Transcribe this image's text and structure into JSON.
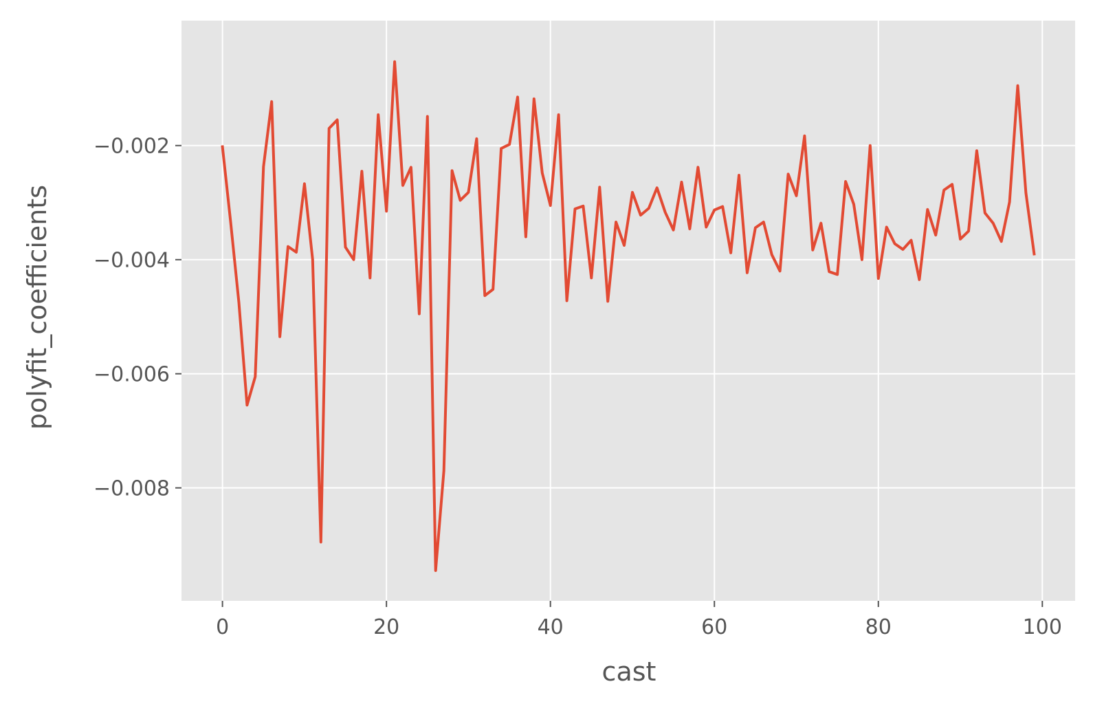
{
  "chart_data": {
    "type": "line",
    "title": "",
    "xlabel": "cast",
    "ylabel": "polyfit_coefficients",
    "xlim": [
      -5,
      104
    ],
    "ylim": [
      -0.00998,
      0.00019
    ],
    "grid": true,
    "x_ticks": [
      0,
      20,
      40,
      60,
      80,
      100
    ],
    "x_tick_labels": [
      "0",
      "20",
      "40",
      "60",
      "80",
      "100"
    ],
    "y_ticks": [
      -0.002,
      -0.004,
      -0.006,
      -0.008
    ],
    "y_tick_labels": [
      "−0.002",
      "−0.004",
      "−0.006",
      "−0.008"
    ],
    "series": [
      {
        "color": "#E24A33",
        "x": [
          0,
          1,
          2,
          3,
          4,
          5,
          6,
          7,
          8,
          9,
          10,
          11,
          12,
          13,
          14,
          15,
          16,
          17,
          18,
          19,
          20,
          21,
          22,
          23,
          24,
          25,
          26,
          27,
          28,
          29,
          30,
          31,
          32,
          33,
          34,
          35,
          36,
          37,
          38,
          39,
          40,
          41,
          42,
          43,
          44,
          45,
          46,
          47,
          48,
          49,
          50,
          51,
          52,
          53,
          54,
          55,
          56,
          57,
          58,
          59,
          60,
          61,
          62,
          63,
          64,
          65,
          66,
          67,
          68,
          69,
          70,
          71,
          72,
          73,
          74,
          75,
          76,
          77,
          78,
          79,
          80,
          81,
          82,
          83,
          84,
          85,
          86,
          87,
          88,
          89,
          90,
          91,
          92,
          93,
          94,
          95,
          96,
          97,
          98,
          99
        ],
        "y": [
          -0.00202,
          -0.00335,
          -0.00475,
          -0.00655,
          -0.00605,
          -0.00237,
          -0.00123,
          -0.00535,
          -0.00377,
          -0.00387,
          -0.00267,
          -0.004,
          -0.00895,
          -0.0017,
          -0.00155,
          -0.00378,
          -0.004,
          -0.00245,
          -0.00432,
          -0.00146,
          -0.00315,
          -0.00053,
          -0.0027,
          -0.00238,
          -0.00495,
          -0.00149,
          -0.00945,
          -0.0077,
          -0.00244,
          -0.00296,
          -0.00282,
          -0.00188,
          -0.00463,
          -0.00452,
          -0.00205,
          -0.00198,
          -0.00115,
          -0.0036,
          -0.00118,
          -0.00248,
          -0.00305,
          -0.00146,
          -0.00472,
          -0.00311,
          -0.00306,
          -0.00432,
          -0.00273,
          -0.00473,
          -0.00334,
          -0.00375,
          -0.00282,
          -0.00322,
          -0.0031,
          -0.00274,
          -0.00317,
          -0.00348,
          -0.00264,
          -0.00346,
          -0.00238,
          -0.00343,
          -0.00313,
          -0.00307,
          -0.00388,
          -0.00252,
          -0.00423,
          -0.00344,
          -0.00334,
          -0.00391,
          -0.0042,
          -0.0025,
          -0.00288,
          -0.00183,
          -0.00383,
          -0.00336,
          -0.00421,
          -0.00426,
          -0.00263,
          -0.00303,
          -0.004,
          -0.002,
          -0.00433,
          -0.00343,
          -0.00372,
          -0.00382,
          -0.00366,
          -0.00435,
          -0.00312,
          -0.00357,
          -0.00278,
          -0.00268,
          -0.00364,
          -0.0035,
          -0.00209,
          -0.00318,
          -0.00336,
          -0.00368,
          -0.00299,
          -0.00095,
          -0.00283,
          -0.0039
        ]
      }
    ]
  },
  "colors": {
    "plot_background": "#E5E5E5",
    "grid": "#FFFFFF",
    "line": "#E24A33",
    "text": "#555555"
  }
}
